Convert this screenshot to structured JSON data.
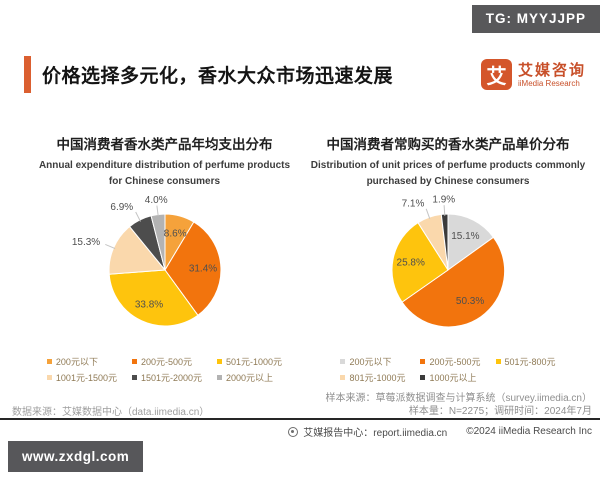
{
  "page": {
    "tg_badge": "TG: MYYJJPP",
    "title": "价格选择多元化，香水大众市场迅速发展",
    "logo": {
      "icon_char": "艾",
      "name_cn": "艾媒咨询",
      "name_en": "iiMedia Research"
    },
    "watermark": "www.zxdgl.com",
    "accent_color": "#DB5F30",
    "brand_color": "#C8502A",
    "badge_bg": "#58585A"
  },
  "footer": {
    "data_source": "数据来源：艾媒数据中心（data.iimedia.cn）",
    "sample_source": "样本来源：草莓派数据调查与计算系统（survey.iimedia.cn）",
    "sample_info": "样本量：N=2275；调研时间：2024年7月",
    "report_center": "艾媒报告中心：report.iimedia.cn",
    "copyright": "©2024 iiMedia Research Inc"
  },
  "chart_data": [
    {
      "type": "pie",
      "title": "中国消费者香水类产品年均支出分布",
      "subtitle_line1": "Annual expenditure distribution of perfume products",
      "subtitle_line2": "for Chinese consumers",
      "unit": "%",
      "legend_position": "bottom",
      "start_angle_deg": 0,
      "slices": [
        {
          "label": "200元以下",
          "value": 8.6,
          "color": "#F5A23B",
          "label_inside": true
        },
        {
          "label": "200元-500元",
          "value": 31.4,
          "color": "#F2740D",
          "label_inside": true
        },
        {
          "label": "501元-1000元",
          "value": 33.8,
          "color": "#FEC40D",
          "label_inside": true
        },
        {
          "label": "1001元-1500元",
          "value": 15.3,
          "color": "#FAD8AC",
          "label_inside": false
        },
        {
          "label": "1501元-2000元",
          "value": 6.9,
          "color": "#4D4D4D",
          "label_inside": false
        },
        {
          "label": "2000元以上",
          "value": 4.0,
          "color": "#B3B3B3",
          "label_inside": false
        }
      ]
    },
    {
      "type": "pie",
      "title": "中国消费者常购买的香水类产品单价分布",
      "subtitle_line1": "Distribution of unit prices of perfume products commonly",
      "subtitle_line2": "purchased by Chinese consumers",
      "unit": "%",
      "legend_position": "bottom",
      "start_angle_deg": 0,
      "slices": [
        {
          "label": "200元以下",
          "value": 15.1,
          "color": "#D9D9D9",
          "label_inside": true
        },
        {
          "label": "200元-500元",
          "value": 50.3,
          "color": "#F2740D",
          "label_inside": true
        },
        {
          "label": "501元-800元",
          "value": 25.8,
          "color": "#FEC40D",
          "label_inside": true
        },
        {
          "label": "801元-1000元",
          "value": 7.1,
          "color": "#FAD8AC",
          "label_inside": false
        },
        {
          "label": "1000元以上",
          "value": 1.9,
          "color": "#3B3B3B",
          "label_inside": false
        }
      ]
    }
  ]
}
